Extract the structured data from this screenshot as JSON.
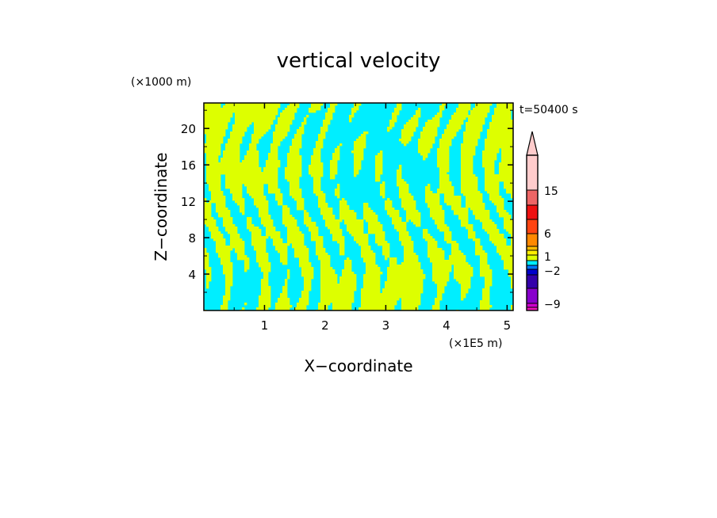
{
  "chart_data": {
    "type": "heatmap",
    "title": "vertical velocity",
    "xlabel": "X−coordinate",
    "ylabel": "Z−coordinate",
    "x_scale_label": "(×1E5 m)",
    "y_scale_label": "(×1000 m)",
    "time_label": "t=50400 s",
    "xlim": [
      0.0,
      5.1
    ],
    "ylim": [
      0.0,
      22.8
    ],
    "x_ticks": [
      1,
      2,
      3,
      4,
      5
    ],
    "y_ticks": [
      4,
      8,
      12,
      16,
      20
    ],
    "grid": false,
    "colors": {
      "positive_small": "#ddff00",
      "negative_small": "#00eeff"
    },
    "colorbar": {
      "position": "right",
      "extend": "max",
      "tick_labels": [
        "15",
        "6",
        "1",
        "−2",
        "−9"
      ],
      "tick_values": [
        15,
        6,
        1,
        -2,
        -9
      ],
      "levels": [
        {
          "value": 20,
          "color": "#ffcccc"
        },
        {
          "value": 15,
          "color": "#ee6666"
        },
        {
          "value": 12,
          "color": "#ee1111"
        },
        {
          "value": 9,
          "color": "#ff4411"
        },
        {
          "value": 6,
          "color": "#ff8800"
        },
        {
          "value": 3,
          "color": "#ffbb00"
        },
        {
          "value": 2,
          "color": "#ffee00"
        },
        {
          "value": 1,
          "color": "#ddff00"
        },
        {
          "value": 0,
          "color": "#00eeff"
        },
        {
          "value": -1,
          "color": "#0077ff"
        },
        {
          "value": -2,
          "color": "#0000cc"
        },
        {
          "value": -3,
          "color": "#3300aa"
        },
        {
          "value": -6,
          "color": "#8800cc"
        },
        {
          "value": -9,
          "color": "#cc00cc"
        },
        {
          "value": -12,
          "color": "#ee11bb"
        }
      ]
    }
  }
}
